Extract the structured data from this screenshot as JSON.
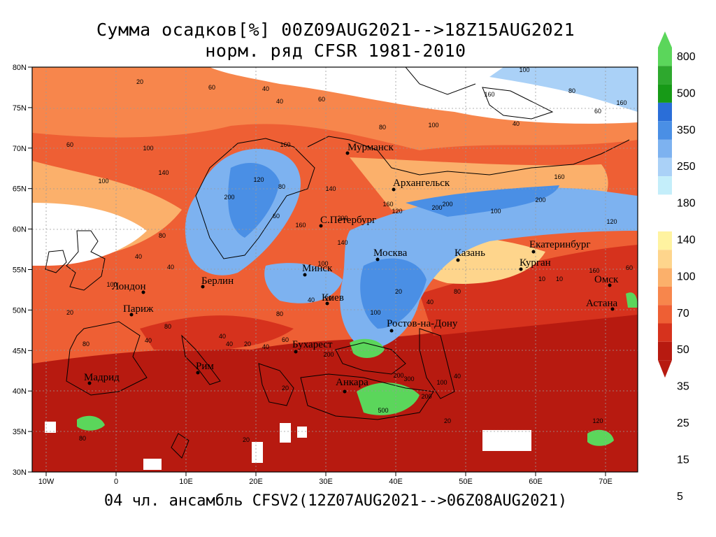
{
  "title": {
    "line1": "Сумма осадков[%] 00Z09AUG2021-->18Z15AUG2021",
    "line2": "норм. ряд CFSR 1981-2010"
  },
  "footer": "04 чл. ансамбль CFSV2(12Z07AUG2021-->06Z08AUG2021)",
  "axes": {
    "lat_labels": [
      "80N",
      "75N",
      "70N",
      "65N",
      "60N",
      "55N",
      "50N",
      "45N",
      "40N",
      "35N",
      "30N"
    ],
    "lon_labels": [
      "10W",
      "0",
      "10E",
      "20E",
      "30E",
      "40E",
      "50E",
      "60E",
      "70E"
    ]
  },
  "colorbar": {
    "labels": [
      "800",
      "500",
      "350",
      "250",
      "180",
      "140",
      "100",
      "70",
      "50",
      "35",
      "25",
      "15",
      "5"
    ],
    "colors": [
      "#5bd65b",
      "#2ea82e",
      "#179a17",
      "#2a6ed8",
      "#4a8fe5",
      "#7db2f0",
      "#aad1f7",
      "#c4eefa",
      "#ffffff",
      "#fff3a0",
      "#fed58c",
      "#fbb06b",
      "#f7864c",
      "#ee5f34",
      "#d6321d",
      "#b71a10"
    ]
  },
  "cities": [
    {
      "name": "Мурманск",
      "color": "#000"
    },
    {
      "name": "Архангельск"
    },
    {
      "name": "С.Петербург"
    },
    {
      "name": "Москва"
    },
    {
      "name": "Казань"
    },
    {
      "name": "Екатеринбург"
    },
    {
      "name": "Курган"
    },
    {
      "name": "Омск"
    },
    {
      "name": "Астана"
    },
    {
      "name": "Минск"
    },
    {
      "name": "Берлин"
    },
    {
      "name": "Лондон"
    },
    {
      "name": "Париж"
    },
    {
      "name": "Киев"
    },
    {
      "name": "Ростов-на-Дону"
    },
    {
      "name": "Бухарест"
    },
    {
      "name": "Рим"
    },
    {
      "name": "Мадрид"
    },
    {
      "name": "Анкара"
    }
  ],
  "contour_values": [
    "20",
    "60",
    "40",
    "40",
    "60",
    "80",
    "100",
    "160",
    "100",
    "80",
    "60",
    "40",
    "60",
    "100",
    "140",
    "100",
    "80",
    "40",
    "40",
    "100",
    "200",
    "160",
    "120",
    "80",
    "200",
    "60",
    "140",
    "160",
    "200",
    "120",
    "200",
    "160",
    "100",
    "120",
    "160",
    "200",
    "140",
    "160",
    "100",
    "80",
    "60",
    "40",
    "40",
    "20",
    "20",
    "10",
    "10",
    "20",
    "40",
    "80",
    "100",
    "200",
    "300",
    "200",
    "500",
    "200",
    "100",
    "40",
    "20",
    "80",
    "40",
    "80",
    "20",
    "20",
    "40",
    "20",
    "40",
    "80",
    "120",
    "160",
    "60"
  ],
  "map_colors": {
    "deep_red": "#b71a10",
    "red": "#d6321d",
    "orange_red": "#ee5f34",
    "orange": "#f7864c",
    "light_orange": "#fbb06b",
    "peach": "#fed58c",
    "yellow": "#fff3a0",
    "white": "#ffffff",
    "pale_blue": "#c4eefa",
    "light_blue": "#aad1f7",
    "blue": "#7db2f0",
    "mid_blue": "#4a8fe5",
    "dark_blue": "#2a6ed8",
    "green": "#5bd65b"
  }
}
